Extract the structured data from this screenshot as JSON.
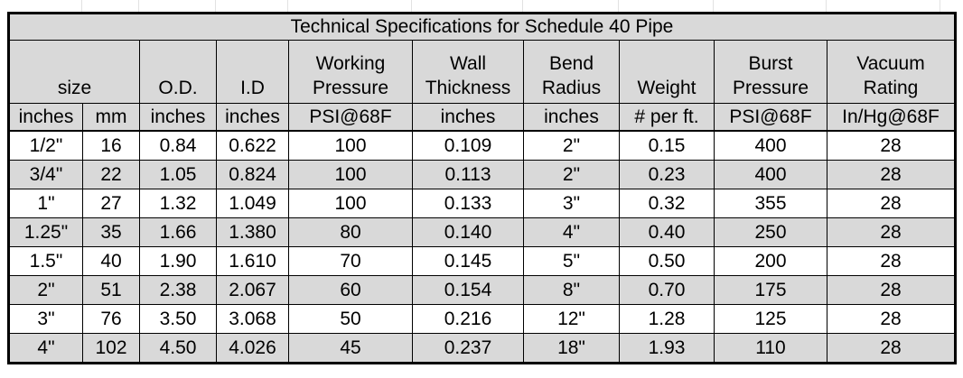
{
  "title": "Technical Specifications for Schedule 40 Pipe",
  "colors": {
    "header_fill": "#d9d9d9",
    "shaded_row_fill": "#d9d9d9",
    "border": "#000000",
    "background": "#ffffff"
  },
  "header_groups": [
    {
      "lines": [
        "size"
      ],
      "colspan": 2
    },
    {
      "lines": [
        "O.D."
      ],
      "colspan": 1
    },
    {
      "lines": [
        "I.D"
      ],
      "colspan": 1
    },
    {
      "lines": [
        "Working",
        "Pressure"
      ],
      "colspan": 1
    },
    {
      "lines": [
        "Wall",
        "Thickness"
      ],
      "colspan": 1
    },
    {
      "lines": [
        "Bend",
        "Radius"
      ],
      "colspan": 1
    },
    {
      "lines": [
        "Weight"
      ],
      "colspan": 1
    },
    {
      "lines": [
        "Burst",
        "Pressure"
      ],
      "colspan": 1
    },
    {
      "lines": [
        "Vacuum",
        "Rating"
      ],
      "colspan": 1
    }
  ],
  "units": [
    "inches",
    "mm",
    "inches",
    "inches",
    "PSI@68F",
    "inches",
    "inches",
    "# per ft.",
    "PSI@68F",
    "In/Hg@68F"
  ],
  "rows": [
    [
      "1/2\"",
      "16",
      "0.84",
      "0.622",
      "100",
      "0.109",
      "2\"",
      "0.15",
      "400",
      "28"
    ],
    [
      "3/4\"",
      "22",
      "1.05",
      "0.824",
      "100",
      "0.113",
      "2\"",
      "0.23",
      "400",
      "28"
    ],
    [
      "1\"",
      "27",
      "1.32",
      "1.049",
      "100",
      "0.133",
      "3\"",
      "0.32",
      "355",
      "28"
    ],
    [
      "1.25\"",
      "35",
      "1.66",
      "1.380",
      "80",
      "0.140",
      "4\"",
      "0.40",
      "250",
      "28"
    ],
    [
      "1.5\"",
      "40",
      "1.90",
      "1.610",
      "70",
      "0.145",
      "5\"",
      "0.50",
      "200",
      "28"
    ],
    [
      "2\"",
      "51",
      "2.38",
      "2.067",
      "60",
      "0.154",
      "8\"",
      "0.70",
      "175",
      "28"
    ],
    [
      "3\"",
      "76",
      "3.50",
      "3.068",
      "50",
      "0.216",
      "12\"",
      "1.28",
      "125",
      "28"
    ],
    [
      "4\"",
      "102",
      "4.50",
      "4.026",
      "45",
      "0.237",
      "18\"",
      "1.93",
      "110",
      "28"
    ]
  ]
}
